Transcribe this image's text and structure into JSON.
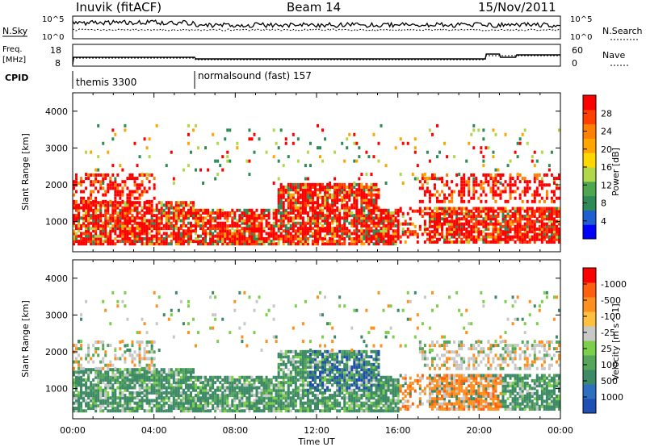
{
  "header": {
    "station": "Inuvik (fitACF)",
    "beam": "Beam 14",
    "date": "15/Nov/2011"
  },
  "noise_panel": {
    "left_label": "N.Sky",
    "right_label": "N.Search",
    "left_ticks": [
      "10^5",
      "10^0"
    ],
    "right_ticks": [
      "10^5",
      "10^0"
    ]
  },
  "freq_panel": {
    "left_label_line1": "Freq.",
    "left_label_line2": "[MHz]",
    "left_ticks": [
      "18",
      "8"
    ],
    "right_label": "Nave",
    "right_ticks": [
      "60",
      "0"
    ]
  },
  "cpid": {
    "label": "CPID",
    "segments": [
      {
        "name": "themis 3300",
        "start_h": 0,
        "end_h": 6
      },
      {
        "name": "normalsound (fast) 157",
        "start_h": 6,
        "end_h": 24
      }
    ]
  },
  "chart_data": [
    {
      "type": "heatmap",
      "panel": "power",
      "xlabel": "Time UT",
      "ylabel": "Slant Range [km]",
      "xlim": [
        0,
        24
      ],
      "ylim": [
        180,
        4500
      ],
      "yticks": [
        1000,
        2000,
        3000,
        4000
      ],
      "colorbar": {
        "label": "Power [dB]",
        "ticks": [
          "4",
          "8",
          "12",
          "16",
          "20",
          "24",
          "28"
        ],
        "colors": [
          "#0000ff",
          "#1f5fd0",
          "#2e8b57",
          "#4fa650",
          "#b0d84a",
          "#ffd700",
          "#ffa500",
          "#ff7f00",
          "#ff4000",
          "#ff0000"
        ]
      }
    },
    {
      "type": "heatmap",
      "panel": "velocity",
      "xlabel": "Time UT",
      "ylabel": "Slant Range [km]",
      "xlim": [
        0,
        24
      ],
      "ylim": [
        180,
        4500
      ],
      "yticks": [
        1000,
        2000,
        3000,
        4000
      ],
      "colorbar": {
        "label": "Velocity [m s^-1]",
        "ticks": [
          "1000",
          "500",
          "100",
          "25",
          "-25",
          "-100",
          "-500",
          "-1000"
        ],
        "colors": [
          "#1f4fb4",
          "#2e6fbf",
          "#3d8a66",
          "#55a55a",
          "#7ccf4a",
          "#c8c8c8",
          "#ffc040",
          "#ff9020",
          "#ff6010",
          "#ff0000"
        ]
      }
    }
  ],
  "xaxis": {
    "tick_labels": [
      "00:00",
      "04:00",
      "08:00",
      "12:00",
      "16:00",
      "20:00",
      "00:00"
    ],
    "title": "Time UT"
  }
}
